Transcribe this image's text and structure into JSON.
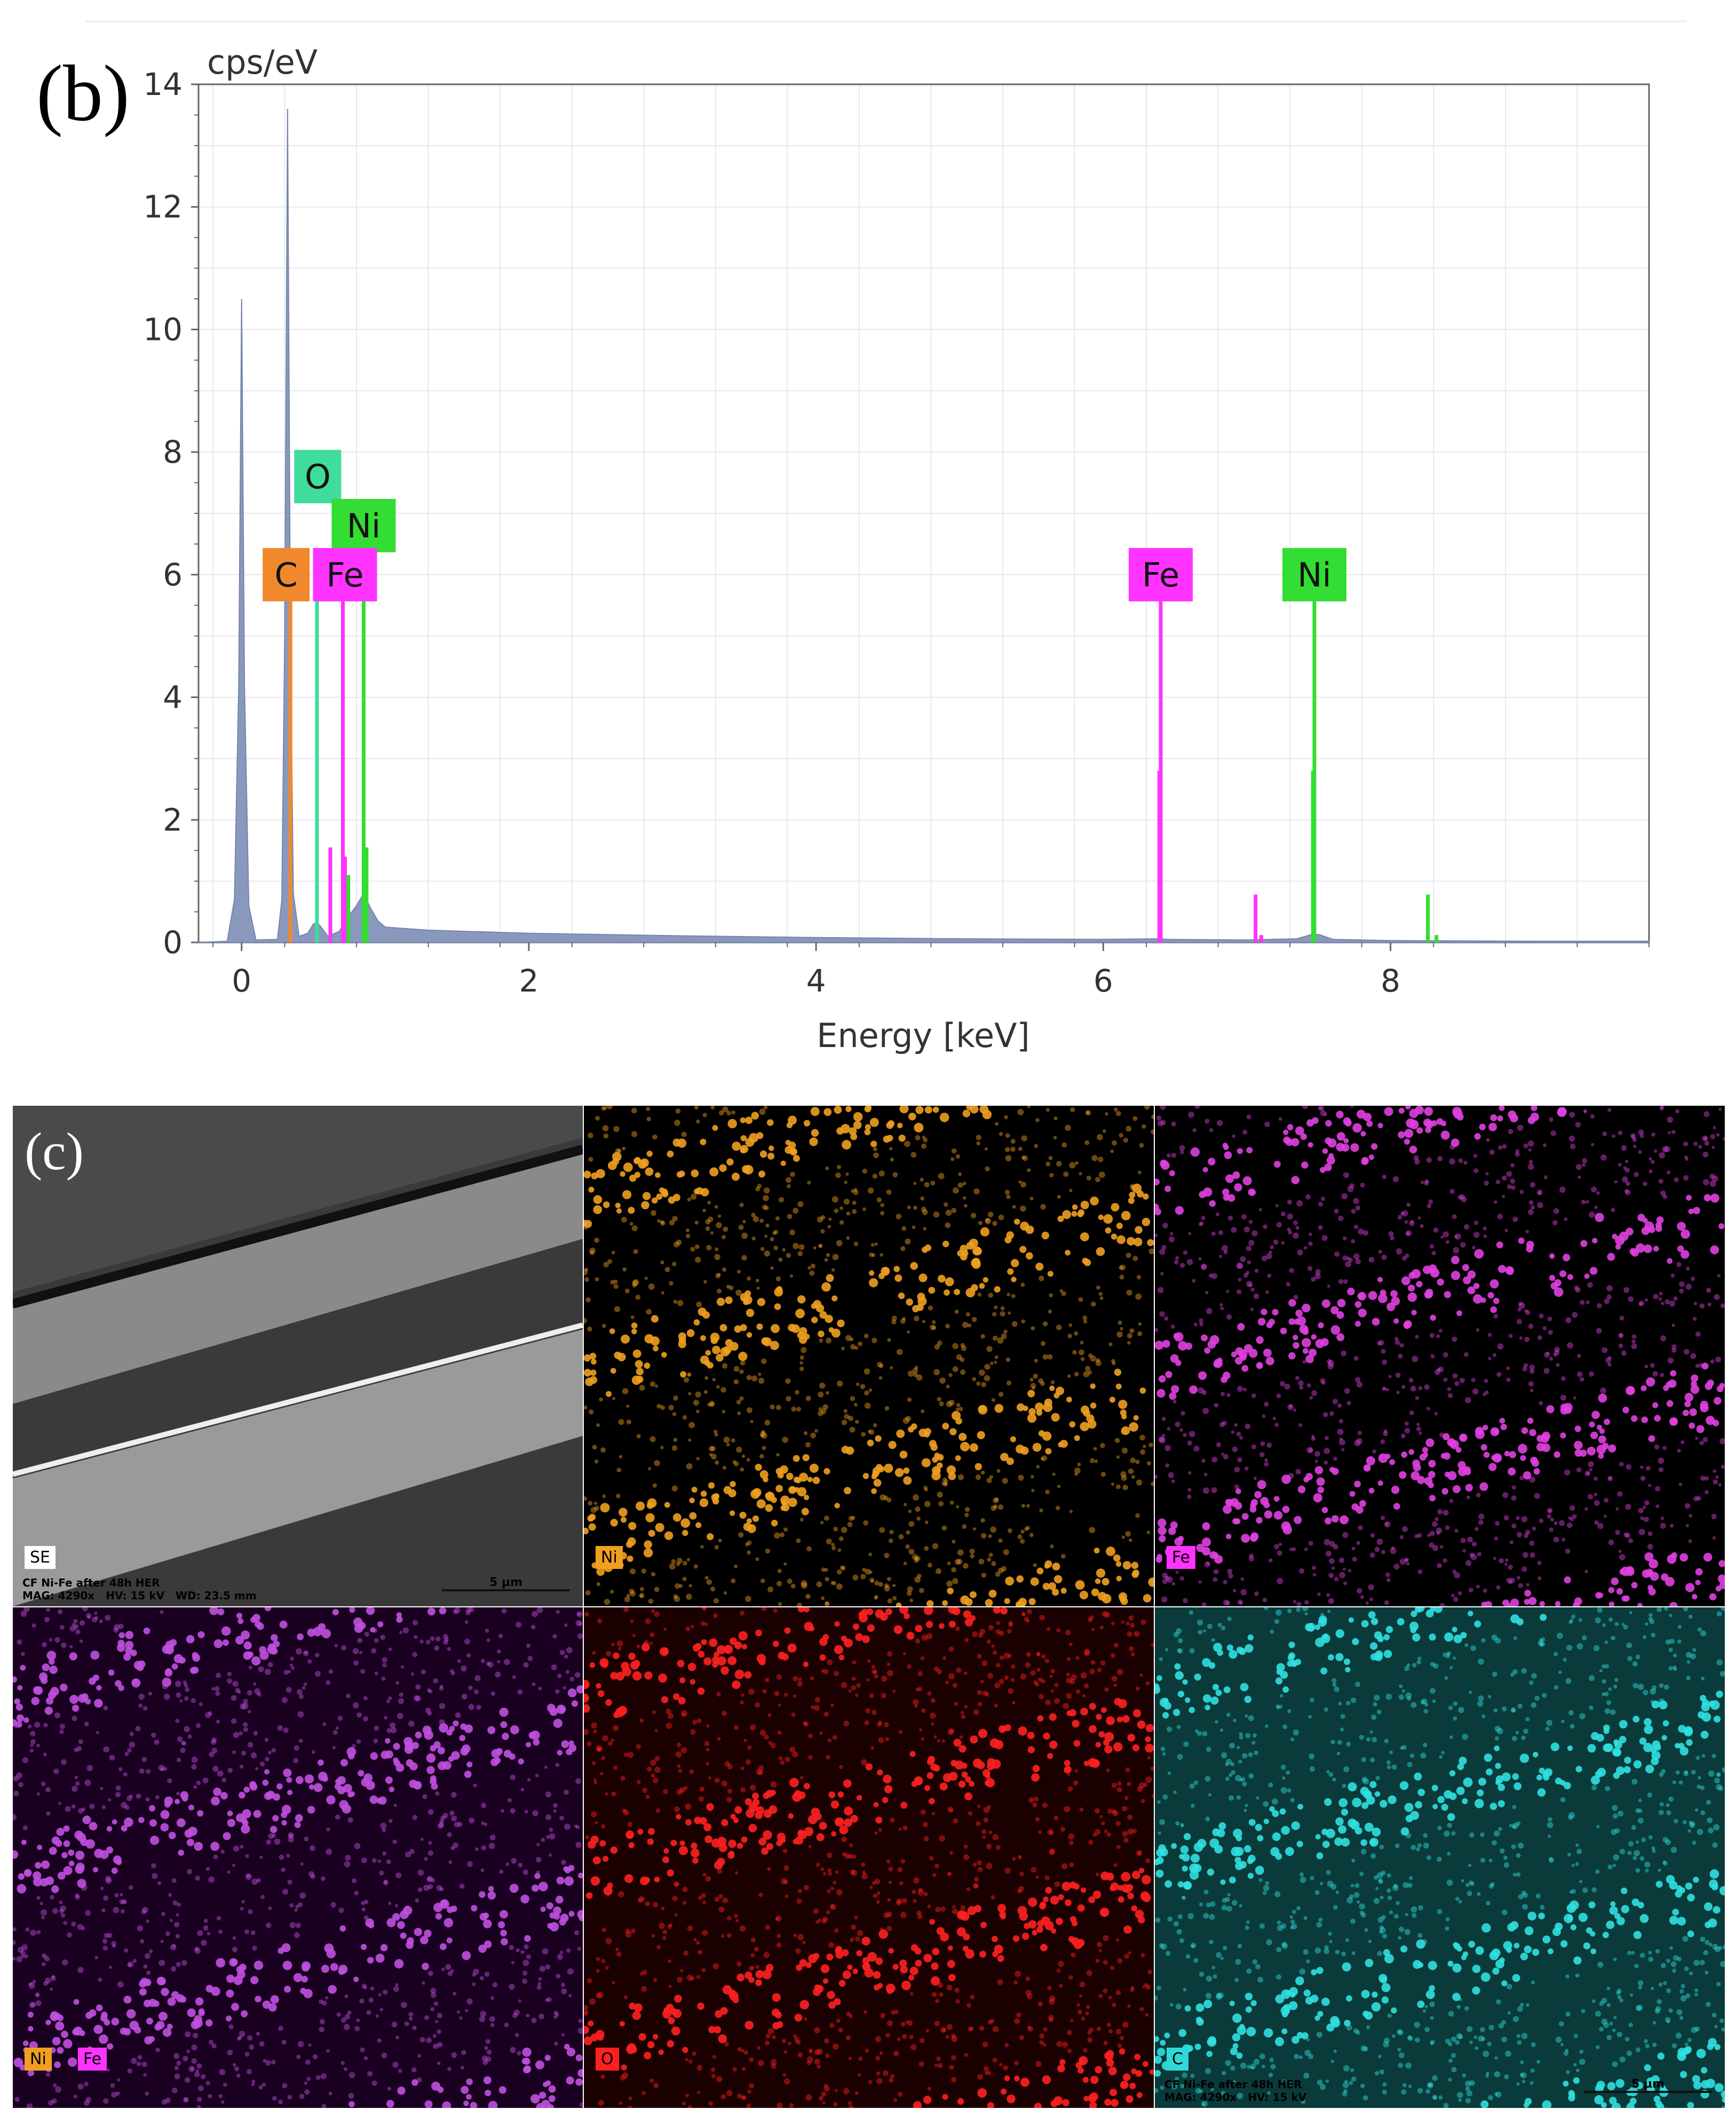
{
  "panel_b_label": "(b)",
  "panel_c_label": "(c)",
  "chart_data": {
    "type": "line",
    "title": "",
    "ylabel": "cps/eV",
    "xlabel": "Energy [keV]",
    "xlim": [
      -0.3,
      9.8
    ],
    "ylim": [
      0,
      14
    ],
    "xticks": [
      "0",
      "2",
      "4",
      "6",
      "8"
    ],
    "yticks": [
      "0",
      "2",
      "4",
      "6",
      "8",
      "10",
      "12",
      "14"
    ],
    "grid": true,
    "series": [
      {
        "name": "spectrum",
        "color": "#8a98bd",
        "points": [
          [
            -0.3,
            0.0
          ],
          [
            -0.1,
            0.02
          ],
          [
            -0.05,
            0.7
          ],
          [
            -0.02,
            4.2
          ],
          [
            0.0,
            10.5
          ],
          [
            0.02,
            4.2
          ],
          [
            0.05,
            0.6
          ],
          [
            0.1,
            0.04
          ],
          [
            0.25,
            0.05
          ],
          [
            0.28,
            0.7
          ],
          [
            0.3,
            5.0
          ],
          [
            0.32,
            13.6
          ],
          [
            0.34,
            5.0
          ],
          [
            0.36,
            0.8
          ],
          [
            0.4,
            0.1
          ],
          [
            0.46,
            0.15
          ],
          [
            0.5,
            0.3
          ],
          [
            0.53,
            0.32
          ],
          [
            0.57,
            0.2
          ],
          [
            0.6,
            0.1
          ],
          [
            0.68,
            0.18
          ],
          [
            0.72,
            0.35
          ],
          [
            0.8,
            0.6
          ],
          [
            0.85,
            0.8
          ],
          [
            0.9,
            0.55
          ],
          [
            0.95,
            0.35
          ],
          [
            1.0,
            0.25
          ],
          [
            1.3,
            0.2
          ],
          [
            2.0,
            0.15
          ],
          [
            3.0,
            0.11
          ],
          [
            4.0,
            0.08
          ],
          [
            5.0,
            0.06
          ],
          [
            6.0,
            0.05
          ],
          [
            6.38,
            0.06
          ],
          [
            6.45,
            0.05
          ],
          [
            7.0,
            0.04
          ],
          [
            7.35,
            0.06
          ],
          [
            7.45,
            0.13
          ],
          [
            7.5,
            0.13
          ],
          [
            7.6,
            0.05
          ],
          [
            8.0,
            0.03
          ],
          [
            9.0,
            0.02
          ],
          [
            9.8,
            0.02
          ]
        ]
      }
    ],
    "element_lines": [
      {
        "element": "C",
        "color": "#f0892e",
        "lines": [
          [
            0.34,
            5.6
          ]
        ]
      },
      {
        "element": "O",
        "color": "#3fdc9c",
        "lines": [
          [
            0.525,
            5.6
          ]
        ]
      },
      {
        "element": "Fe",
        "color": "#ff33ff",
        "lines": [
          [
            0.618,
            1.55
          ],
          [
            0.705,
            5.6
          ],
          [
            0.72,
            1.4
          ],
          [
            6.4,
            5.6
          ],
          [
            6.39,
            2.8
          ],
          [
            7.06,
            0.78
          ],
          [
            7.1,
            0.12
          ]
        ]
      },
      {
        "element": "Ni",
        "color": "#33dd33",
        "lines": [
          [
            0.743,
            1.1
          ],
          [
            0.85,
            5.6
          ],
          [
            0.87,
            1.55
          ],
          [
            7.47,
            5.6
          ],
          [
            7.46,
            2.8
          ],
          [
            8.26,
            0.78
          ],
          [
            8.32,
            0.12
          ]
        ]
      }
    ],
    "labels": [
      {
        "text": "C",
        "color": "#f0892e",
        "x": 0.31,
        "y": 6.0
      },
      {
        "text": "O",
        "color": "#3fdc9c",
        "x": 0.53,
        "y": 7.6
      },
      {
        "text": "Ni",
        "color": "#33dd33",
        "x": 0.85,
        "y": 6.8
      },
      {
        "text": "Fe",
        "color": "#ff33ff",
        "x": 0.72,
        "y": 6.0
      },
      {
        "text": "Fe",
        "color": "#ff33ff",
        "x": 6.4,
        "y": 6.0
      },
      {
        "text": "Ni",
        "color": "#33dd33",
        "x": 7.47,
        "y": 6.0
      }
    ]
  },
  "maps": [
    {
      "id": "se",
      "tags": [
        {
          "text": "SE",
          "bg": "#ffffff"
        }
      ],
      "meta": "CF Ni-Fe after 48h HER\nMAG: 4290x   HV: 15 kV   WD: 23.5 mm",
      "scale": "5 µm",
      "bg": "#3a3a3a"
    },
    {
      "id": "ni",
      "tags": [
        {
          "text": "Ni",
          "bg": "#f0a020"
        }
      ],
      "meta": "",
      "scale": "",
      "bg": "#000000",
      "dot": "#f0a020"
    },
    {
      "id": "fe",
      "tags": [
        {
          "text": "Fe",
          "bg": "#ff33ff"
        }
      ],
      "meta": "",
      "scale": "",
      "bg": "#000000",
      "dot": "#e040e0"
    },
    {
      "id": "nife",
      "tags": [
        {
          "text": "Ni",
          "bg": "#f0a020"
        },
        {
          "text": "Fe",
          "bg": "#ff33ff"
        }
      ],
      "meta": "",
      "scale": "",
      "bg": "#1a0020",
      "dot": "#c050e0"
    },
    {
      "id": "o",
      "tags": [
        {
          "text": "O",
          "bg": "#ff2020"
        }
      ],
      "meta": "",
      "scale": "",
      "bg": "#1a0000",
      "dot": "#ff2020"
    },
    {
      "id": "c",
      "tags": [
        {
          "text": "C",
          "bg": "#30d8d8"
        }
      ],
      "meta": "CF Ni-Fe after 48h HER\nMAG: 4290x   HV: 15 kV",
      "scale": "5 µm",
      "bg": "#0a3a3a",
      "dot": "#30e0e0"
    }
  ]
}
